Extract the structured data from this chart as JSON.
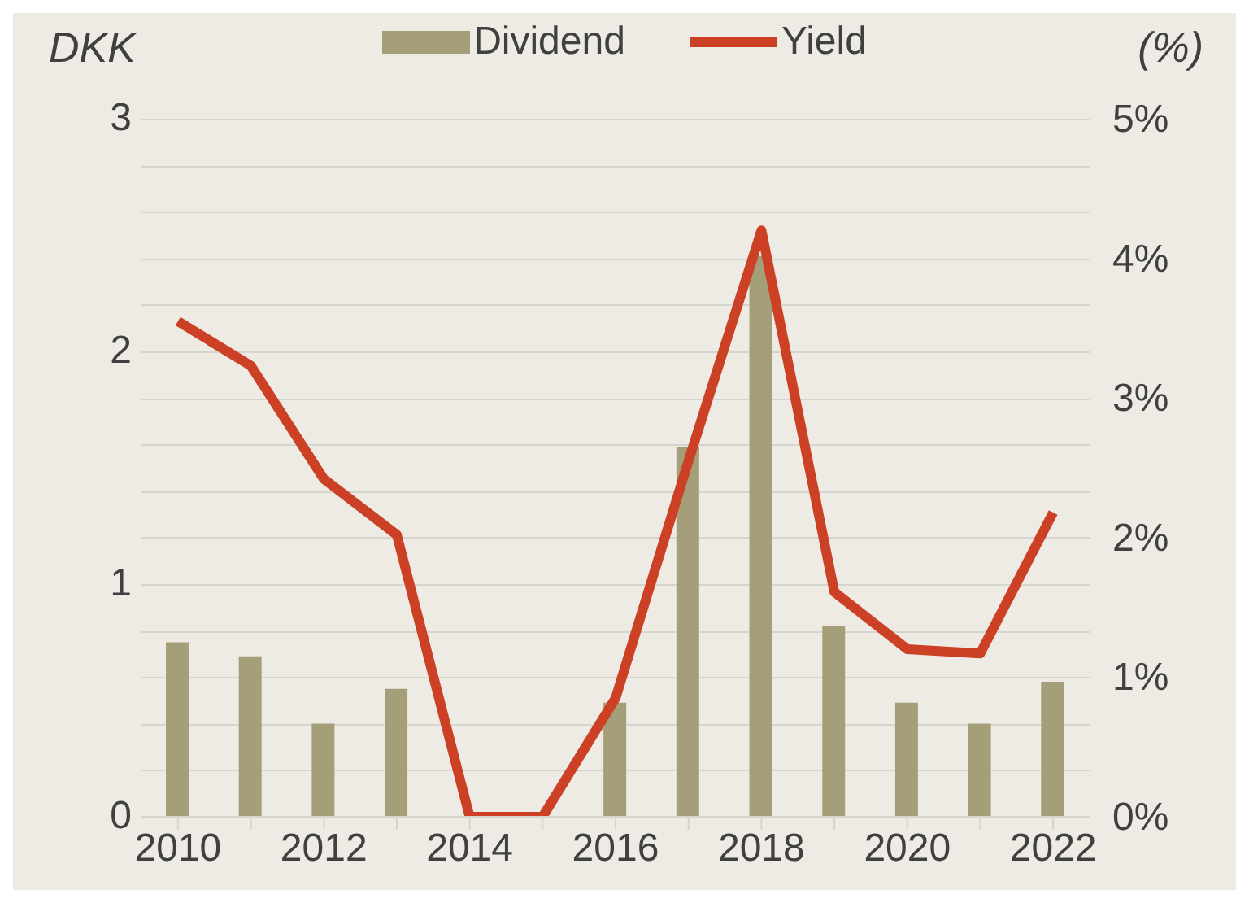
{
  "chart_data": {
    "type": "bar",
    "ylabel": "DKK",
    "y2label": "(%)",
    "categories": [
      "2010",
      null,
      "2012",
      null,
      "2014",
      null,
      "2016",
      null,
      "2018",
      null,
      "2020",
      null,
      "2022"
    ],
    "series": [
      {
        "name": "Dividend",
        "type": "bar",
        "color": "#a59f79",
        "values": [
          0.75,
          0.69,
          0.4,
          0.55,
          0,
          0,
          0.49,
          1.59,
          2.41,
          0.82,
          0.49,
          0.4,
          0.58
        ]
      },
      {
        "name": "Yield",
        "type": "line",
        "axis": "y2",
        "color": "#cc4125",
        "values": [
          3.55,
          3.23,
          2.42,
          2.02,
          0,
          0,
          0.85,
          2.55,
          4.2,
          1.61,
          1.2,
          1.17,
          2.18
        ]
      }
    ],
    "ylim": [
      0,
      3
    ],
    "yticks": [
      0,
      {
        "value": 0.2,
        "label": null
      },
      {
        "value": 0.4,
        "label": null
      },
      {
        "value": 0.6,
        "label": null
      },
      {
        "value": 0.8,
        "label": null
      },
      1,
      {
        "value": 1.2,
        "label": null
      },
      {
        "value": 1.4,
        "label": null
      },
      {
        "value": 1.6,
        "label": null
      },
      {
        "value": 1.8,
        "label": null
      },
      2,
      {
        "value": 2.2,
        "label": null
      },
      {
        "value": 2.4,
        "label": null
      },
      {
        "value": 2.6,
        "label": null
      },
      {
        "value": 2.8,
        "label": null
      },
      3
    ],
    "y2lim": [
      0,
      5
    ],
    "y2ticks": [
      {
        "value": 0,
        "label": "0%"
      },
      {
        "value": 1,
        "label": "1%"
      },
      {
        "value": 2,
        "label": "2%"
      },
      {
        "value": 3,
        "label": "3%"
      },
      {
        "value": 4,
        "label": "4%"
      },
      {
        "value": 5,
        "label": "5%"
      }
    ],
    "grid": "y",
    "legend": "top",
    "marker": "none",
    "line_style": "solid"
  }
}
